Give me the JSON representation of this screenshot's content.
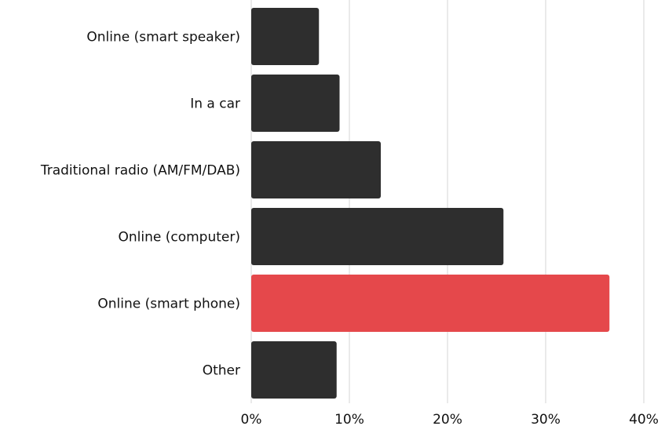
{
  "chart_data": {
    "type": "bar",
    "orientation": "horizontal",
    "categories": [
      "Online (smart speaker)",
      "In a car",
      "Traditional radio (AM/FM/DAB)",
      "Online (computer)",
      "Online (smart phone)",
      "Other"
    ],
    "values": [
      6.9,
      9.0,
      13.2,
      25.7,
      36.5,
      8.7
    ],
    "unit": "%",
    "xlim": [
      0,
      40
    ],
    "xticks": [
      "0%",
      "10%",
      "20%",
      "30%",
      "40%"
    ],
    "grid": true,
    "title": "",
    "xlabel": "",
    "ylabel": "",
    "colors": {
      "default_bar": "#2e2e2e",
      "highlight_bar": "#e5484b",
      "grid": "#d4d4d4"
    },
    "highlight_category": "Online (smart phone)"
  }
}
